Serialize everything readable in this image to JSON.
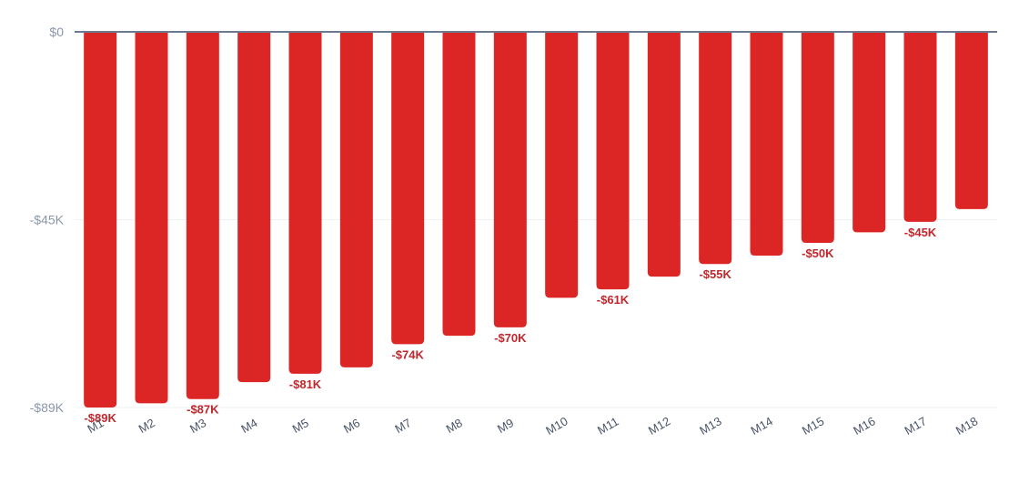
{
  "chart_data": {
    "type": "bar",
    "title": "",
    "xlabel": "",
    "ylabel": "",
    "categories": [
      "M1",
      "M2",
      "M3",
      "M4",
      "M5",
      "M6",
      "M7",
      "M8",
      "M9",
      "M10",
      "M11",
      "M12",
      "M13",
      "M14",
      "M15",
      "M16",
      "M17",
      "M18"
    ],
    "values": [
      -89000,
      -88000,
      -87000,
      -83000,
      -81000,
      -79500,
      -74000,
      -72000,
      -70000,
      -63000,
      -61000,
      -58000,
      -55000,
      -53000,
      -50000,
      -47500,
      -45000,
      -42000
    ],
    "data_labels": [
      {
        "index": 0,
        "text": "-$89K"
      },
      {
        "index": 2,
        "text": "-$87K"
      },
      {
        "index": 4,
        "text": "-$81K"
      },
      {
        "index": 6,
        "text": "-$74K"
      },
      {
        "index": 8,
        "text": "-$70K"
      },
      {
        "index": 10,
        "text": "-$61K"
      },
      {
        "index": 12,
        "text": "-$55K"
      },
      {
        "index": 14,
        "text": "-$50K"
      },
      {
        "index": 16,
        "text": "-$45K"
      }
    ],
    "ylim": [
      -89000,
      0
    ],
    "yticks": [
      {
        "value": 0,
        "label": "$0"
      },
      {
        "value": -44500,
        "label": "-$45K"
      },
      {
        "value": -89000,
        "label": "-$89K"
      }
    ],
    "grid": true,
    "legend": "none",
    "colors": {
      "bar": "#dc2626",
      "data_label": "#c0272d",
      "baseline": "#6b7a8f",
      "grid": "#eef1f5",
      "tick_label": "#8a97ab",
      "category_label": "#4a5568"
    }
  }
}
